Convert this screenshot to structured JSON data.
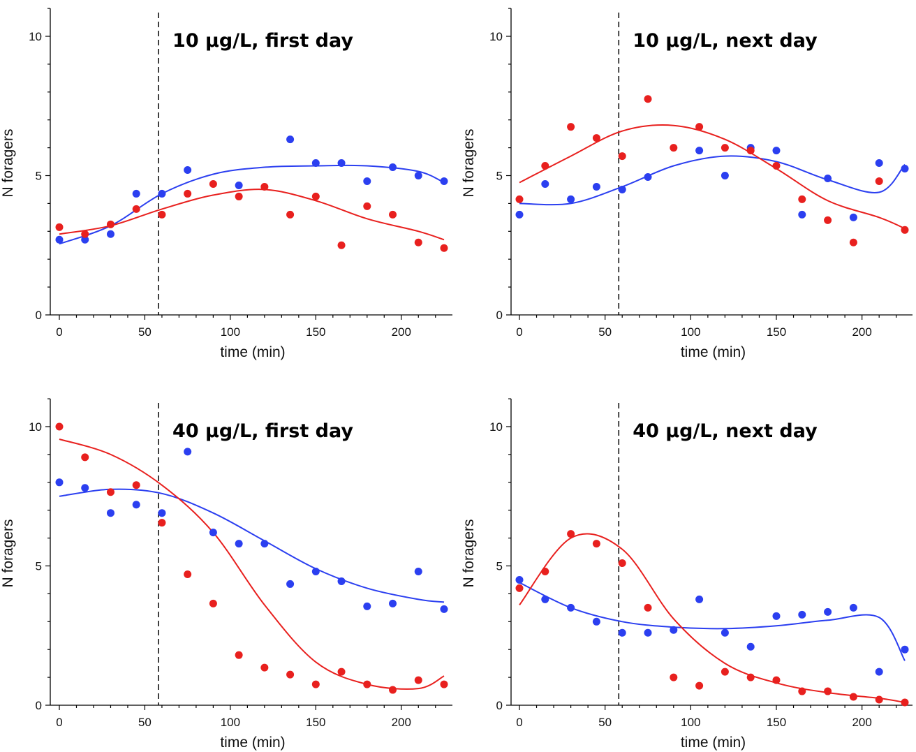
{
  "chart_data": [
    {
      "type": "scatter",
      "title": "10 μg/L, first day",
      "xlabel": "time (min)",
      "ylabel": "N foragers",
      "xlim": [
        -5,
        230
      ],
      "ylim": [
        0,
        11
      ],
      "xticks": [
        0,
        50,
        100,
        150,
        200
      ],
      "yticks": [
        0,
        5,
        10
      ],
      "vline_x": 58,
      "series": [
        {
          "color": "#2b3ff0",
          "x": [
            0,
            15,
            30,
            45,
            60,
            75,
            105,
            135,
            150,
            165,
            180,
            195,
            210,
            225
          ],
          "values": [
            2.7,
            2.7,
            2.9,
            4.35,
            4.35,
            5.2,
            4.65,
            6.3,
            5.45,
            5.45,
            4.8,
            5.3,
            5.0,
            4.8
          ],
          "fit_y": [
            2.55,
            3.2,
            4.35,
            5.05,
            5.3,
            5.35,
            5.35,
            5.15,
            4.75
          ]
        },
        {
          "color": "#e8201e",
          "x": [
            0,
            15,
            30,
            45,
            60,
            75,
            90,
            105,
            120,
            135,
            150,
            165,
            180,
            195,
            210,
            225
          ],
          "values": [
            3.15,
            2.9,
            3.25,
            3.8,
            3.6,
            4.35,
            4.7,
            4.25,
            4.6,
            3.6,
            4.25,
            2.5,
            3.9,
            3.6,
            2.6,
            2.4
          ],
          "fit_y": [
            2.9,
            3.2,
            3.8,
            4.3,
            4.5,
            4.1,
            3.45,
            3.0,
            2.7
          ]
        }
      ]
    },
    {
      "type": "scatter",
      "title": "10 μg/L, next day",
      "xlabel": "time (min)",
      "ylabel": "N foragers",
      "xlim": [
        -5,
        230
      ],
      "ylim": [
        0,
        11
      ],
      "xticks": [
        0,
        50,
        100,
        150,
        200
      ],
      "yticks": [
        0,
        5,
        10
      ],
      "vline_x": 58,
      "series": [
        {
          "color": "#2b3ff0",
          "x": [
            0,
            15,
            30,
            45,
            60,
            75,
            105,
            120,
            135,
            150,
            165,
            180,
            195,
            210,
            225
          ],
          "values": [
            3.6,
            4.7,
            4.15,
            4.6,
            4.5,
            4.95,
            5.9,
            5.0,
            6.0,
            5.9,
            3.6,
            4.9,
            3.5,
            5.45,
            5.25
          ],
          "fit_y": [
            4.0,
            4.0,
            4.6,
            5.35,
            5.7,
            5.5,
            4.85,
            4.4,
            5.4
          ]
        },
        {
          "color": "#e8201e",
          "x": [
            0,
            15,
            30,
            45,
            60,
            75,
            90,
            105,
            120,
            135,
            150,
            165,
            180,
            195,
            210,
            225
          ],
          "values": [
            4.15,
            5.35,
            6.75,
            6.35,
            5.7,
            7.75,
            6.0,
            6.75,
            6.0,
            5.9,
            5.35,
            4.15,
            3.4,
            2.6,
            4.8,
            3.05
          ],
          "fit_y": [
            4.75,
            5.7,
            6.6,
            6.8,
            6.3,
            5.25,
            4.1,
            3.5,
            3.1
          ]
        }
      ]
    },
    {
      "type": "scatter",
      "title": "40 μg/L, first day",
      "xlabel": "time (min)",
      "ylabel": "N foragers",
      "xlim": [
        -5,
        230
      ],
      "ylim": [
        0,
        11
      ],
      "xticks": [
        0,
        50,
        100,
        150,
        200
      ],
      "yticks": [
        0,
        5,
        10
      ],
      "vline_x": 58,
      "series": [
        {
          "color": "#2b3ff0",
          "x": [
            0,
            15,
            30,
            45,
            60,
            75,
            90,
            105,
            120,
            135,
            150,
            165,
            180,
            195,
            210,
            225
          ],
          "values": [
            8.0,
            7.8,
            6.9,
            7.2,
            6.9,
            9.1,
            6.2,
            5.8,
            5.8,
            4.35,
            4.8,
            4.45,
            3.55,
            3.65,
            4.8,
            3.45
          ],
          "fit_y": [
            7.5,
            7.75,
            7.6,
            6.9,
            5.9,
            4.9,
            4.2,
            3.8,
            3.7
          ]
        },
        {
          "color": "#e8201e",
          "x": [
            0,
            15,
            30,
            45,
            60,
            75,
            90,
            105,
            120,
            135,
            150,
            165,
            180,
            195,
            210,
            225
          ],
          "values": [
            10.0,
            8.9,
            7.65,
            7.9,
            6.55,
            4.7,
            3.65,
            1.8,
            1.35,
            1.1,
            0.75,
            1.2,
            0.75,
            0.55,
            0.9,
            0.75
          ],
          "fit_y": [
            9.55,
            9.0,
            7.9,
            6.2,
            3.6,
            1.55,
            0.75,
            0.6,
            1.05
          ]
        }
      ]
    },
    {
      "type": "scatter",
      "title": "40 μg/L, next day",
      "xlabel": "time (min)",
      "ylabel": "N foragers",
      "xlim": [
        -5,
        230
      ],
      "ylim": [
        0,
        11
      ],
      "xticks": [
        0,
        50,
        100,
        150,
        200
      ],
      "yticks": [
        0,
        5,
        10
      ],
      "vline_x": 58,
      "series": [
        {
          "color": "#2b3ff0",
          "x": [
            0,
            15,
            30,
            45,
            60,
            75,
            90,
            105,
            120,
            135,
            150,
            165,
            180,
            195,
            210,
            225
          ],
          "values": [
            4.5,
            3.8,
            3.5,
            3.0,
            2.6,
            2.6,
            2.7,
            3.8,
            2.6,
            2.1,
            3.2,
            3.25,
            3.35,
            3.5,
            1.2,
            2.0
          ],
          "fit_y": [
            4.4,
            3.5,
            3.0,
            2.8,
            2.75,
            2.85,
            3.05,
            3.15,
            1.6
          ]
        },
        {
          "color": "#e8201e",
          "x": [
            0,
            15,
            30,
            45,
            60,
            75,
            90,
            105,
            120,
            135,
            150,
            165,
            180,
            195,
            210,
            225
          ],
          "values": [
            4.2,
            4.8,
            6.15,
            5.8,
            5.1,
            3.5,
            1.0,
            0.7,
            1.2,
            1.0,
            0.9,
            0.5,
            0.5,
            0.3,
            0.2,
            0.1
          ],
          "fit_y": [
            3.6,
            6.0,
            5.6,
            3.1,
            1.5,
            0.8,
            0.45,
            0.25,
            0.1
          ]
        }
      ]
    }
  ]
}
